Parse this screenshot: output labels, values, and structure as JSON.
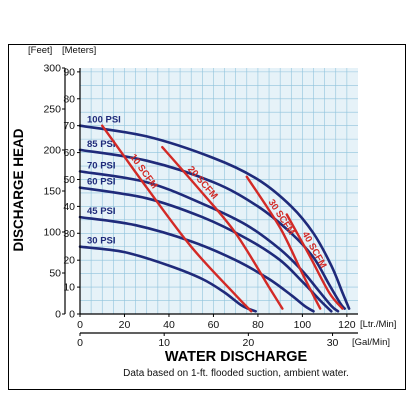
{
  "chart_data": {
    "type": "line",
    "xlabel": "WATER DISCHARGE",
    "ylabel": "DISCHARGE HEAD",
    "note": "Data based on 1-ft. flooded suction, ambient water.",
    "x_primary_unit": "[Ltr./Min]",
    "x_secondary_unit": "[Gal/Min]",
    "y_left_unit": "[Feet]",
    "y_right_unit": "[Meters]",
    "xlim": [
      0,
      125
    ],
    "ylim_meters": [
      0,
      91.44
    ],
    "x_ticks_lpm": [
      "0",
      "20",
      "40",
      "60",
      "80",
      "100",
      "120"
    ],
    "x_ticks_gpm": [
      "0",
      "10",
      "20",
      "30"
    ],
    "y_ticks_feet": [
      "0",
      "50",
      "100",
      "150",
      "200",
      "250",
      "300"
    ],
    "y_ticks_meters": [
      "0",
      "10",
      "20",
      "30",
      "40",
      "50",
      "60",
      "70",
      "80",
      "90"
    ],
    "grid": true,
    "colors": {
      "pressure": "#1f2a7a",
      "air": "#d32a26",
      "grid": "#8fc3dc",
      "plot_bg": "#e6f2f8"
    },
    "series": [
      {
        "name": "100 PSI",
        "group": "pressure",
        "x": [
          0,
          30,
          60,
          80,
          95,
          105,
          113,
          118,
          121
        ],
        "y": [
          70,
          66,
          58,
          50,
          40,
          30,
          18,
          8,
          2
        ]
      },
      {
        "name": "85 PSI",
        "group": "pressure",
        "x": [
          0,
          30,
          60,
          80,
          95,
          105,
          112,
          117,
          119
        ],
        "y": [
          61,
          57,
          49,
          40,
          30,
          21,
          11,
          4,
          2
        ]
      },
      {
        "name": "70 PSI",
        "group": "pressure",
        "x": [
          0,
          30,
          55,
          75,
          90,
          100,
          107,
          113,
          116
        ],
        "y": [
          53,
          49,
          41,
          33,
          24,
          16,
          9,
          3,
          1
        ]
      },
      {
        "name": "60 PSI",
        "group": "pressure",
        "x": [
          0,
          30,
          55,
          75,
          90,
          100,
          108,
          113
        ],
        "y": [
          47,
          43,
          36,
          28,
          20,
          12,
          5,
          1
        ]
      },
      {
        "name": "45 PSI",
        "group": "pressure",
        "x": [
          0,
          25,
          50,
          70,
          85,
          95,
          101,
          105
        ],
        "y": [
          36,
          33,
          27,
          20,
          13,
          7,
          3,
          1
        ]
      },
      {
        "name": "30 PSI",
        "group": "pressure",
        "x": [
          0,
          20,
          40,
          55,
          65,
          73,
          79
        ],
        "y": [
          25,
          23,
          18,
          13,
          8,
          3,
          1
        ]
      },
      {
        "name": "10 SCFM",
        "group": "air",
        "x": [
          10,
          30,
          50,
          70,
          77
        ],
        "y": [
          70,
          47,
          25,
          7,
          1
        ]
      },
      {
        "name": "20 SCFM",
        "group": "air",
        "x": [
          37,
          55,
          70,
          85,
          91
        ],
        "y": [
          62,
          45,
          30,
          10,
          2
        ]
      },
      {
        "name": "30 SCFM",
        "group": "air",
        "x": [
          75,
          90,
          100,
          108
        ],
        "y": [
          51,
          32,
          15,
          2
        ]
      },
      {
        "name": "40 SCFM",
        "group": "air",
        "x": [
          93,
          103,
          112,
          118
        ],
        "y": [
          37,
          22,
          8,
          2
        ]
      }
    ]
  }
}
